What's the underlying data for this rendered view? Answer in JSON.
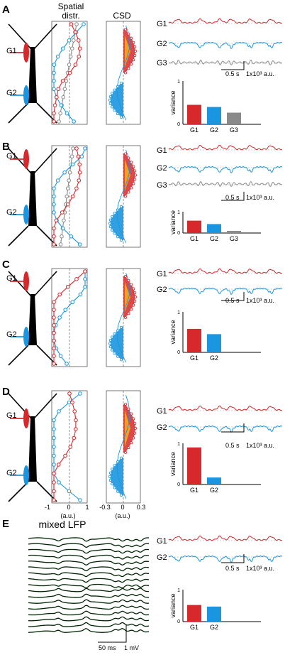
{
  "headers": {
    "spatial_line1": "Spatial",
    "spatial_line2": "distr.",
    "csd": "CSD"
  },
  "colors": {
    "g1": "#d7282b",
    "g2": "#1a96e0",
    "g3": "#8a8a8a",
    "neuron": "#000000"
  },
  "panels": [
    {
      "label": "A",
      "neuron_labels": [
        "G1",
        "G2"
      ],
      "trace_labels": [
        "G1",
        "G2",
        "G3"
      ],
      "scale": "0.5 s",
      "scale_y": "1x10³ a.u.",
      "chart_data": {
        "type": "bar",
        "ylabel": "variance",
        "ylim": [
          0,
          1
        ],
        "yticks": [
          "1",
          "0"
        ],
        "categories": [
          "G1",
          "G2",
          "G3"
        ],
        "values": [
          0.45,
          0.4,
          0.27
        ]
      }
    },
    {
      "label": "B",
      "neuron_labels": [
        "G1",
        "G2"
      ],
      "trace_labels": [
        "G1",
        "G2",
        "G3"
      ],
      "scale": "0.5 s",
      "scale_y": "1x10³ a.u.",
      "chart_data": {
        "type": "bar",
        "ylabel": "variance",
        "ylim": [
          0,
          1
        ],
        "yticks": [
          "1",
          "0"
        ],
        "categories": [
          "G1",
          "G2",
          "G3"
        ],
        "values": [
          0.58,
          0.42,
          0.1
        ]
      }
    },
    {
      "label": "C",
      "neuron_labels": [
        "G1",
        "G2"
      ],
      "trace_labels": [
        "G1",
        "G2"
      ],
      "scale": "0.5 s",
      "scale_y": "1x10³ a.u.",
      "chart_data": {
        "type": "bar",
        "ylabel": "variance",
        "ylim": [
          0,
          1
        ],
        "yticks": [
          "1",
          "0"
        ],
        "categories": [
          "G1",
          "G2"
        ],
        "values": [
          0.58,
          0.45
        ]
      }
    },
    {
      "label": "D",
      "neuron_labels": [
        "G1",
        "G2"
      ],
      "trace_labels": [
        "G1",
        "G2"
      ],
      "scale": "0.5 s",
      "scale_y": "1x10³ a.u.",
      "chart_data": {
        "type": "bar",
        "ylabel": "variance",
        "ylim": [
          0,
          1
        ],
        "yticks": [
          "1",
          "0"
        ],
        "categories": [
          "G1",
          "G2"
        ],
        "values": [
          0.9,
          0.17
        ]
      }
    },
    {
      "label": "E",
      "title": "mixed LFP",
      "trace_labels": [
        "G1",
        "G2"
      ],
      "scale": "0.5 s",
      "scale_y": "1x10³ a.u.",
      "lfp_scale_x": "50 ms",
      "lfp_scale_y": "1 mV",
      "chart_data": {
        "type": "bar",
        "ylabel": "variance",
        "ylim": [
          0,
          1
        ],
        "yticks": [
          "1",
          "0"
        ],
        "categories": [
          "G1",
          "G2"
        ],
        "values": [
          0.52,
          0.47
        ]
      }
    }
  ],
  "axes_d": {
    "spatial_ticks": [
      "-1",
      "0",
      "1"
    ],
    "csd_ticks": [
      "-0.3",
      "0",
      "0.3"
    ],
    "unit": "(a.u.)"
  }
}
